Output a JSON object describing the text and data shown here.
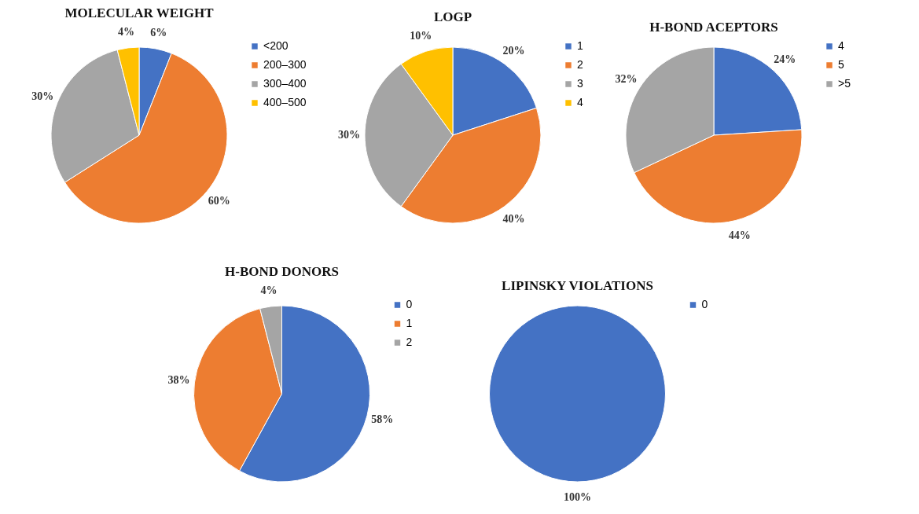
{
  "chart_data": [
    {
      "type": "pie",
      "title": "MOLECULAR WEIGHT",
      "categories": [
        "<200",
        "200–300",
        "300–400",
        "400–500"
      ],
      "values": [
        6,
        60,
        30,
        4
      ],
      "value_labels": [
        "6%",
        "60%",
        "30%",
        "4%"
      ],
      "colors": [
        "#4472c4",
        "#ed7d31",
        "#a5a5a5",
        "#ffc000"
      ],
      "legend": "top right"
    },
    {
      "type": "pie",
      "title": "LOGP",
      "categories": [
        "1",
        "2",
        "3",
        "4"
      ],
      "values": [
        20,
        40,
        30,
        10
      ],
      "value_labels": [
        "20%",
        "40%",
        "30%",
        "10%"
      ],
      "colors": [
        "#4472c4",
        "#ed7d31",
        "#a5a5a5",
        "#ffc000"
      ],
      "legend": "right"
    },
    {
      "type": "pie",
      "title": "H-BOND ACEPTORS",
      "categories": [
        "4",
        "5",
        ">5"
      ],
      "values": [
        24,
        44,
        32
      ],
      "value_labels": [
        "24%",
        "44%",
        "32%"
      ],
      "colors": [
        "#4472c4",
        "#ed7d31",
        "#a5a5a5"
      ],
      "legend": "right"
    },
    {
      "type": "pie",
      "title": "H-BOND DONORS",
      "categories": [
        "0",
        "1",
        "2"
      ],
      "values": [
        58,
        38,
        4
      ],
      "value_labels": [
        "58%",
        "38%",
        "4%"
      ],
      "colors": [
        "#4472c4",
        "#ed7d31",
        "#a5a5a5"
      ],
      "legend": "top right"
    },
    {
      "type": "pie",
      "title": "LIPINSKY VIOLATIONS",
      "categories": [
        "0"
      ],
      "values": [
        100
      ],
      "value_labels": [
        "100%"
      ],
      "colors": [
        "#4472c4"
      ],
      "legend": "top right"
    }
  ]
}
